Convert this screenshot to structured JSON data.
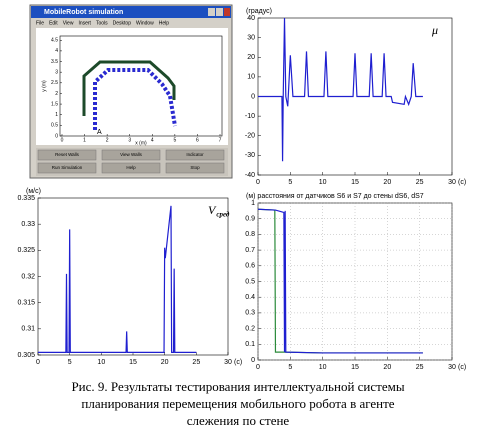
{
  "screenshot": {
    "title": "MobileRobot simulation",
    "menu": [
      "File",
      "Edit",
      "View",
      "Insert",
      "Tools",
      "Desktop",
      "Window",
      "Help"
    ],
    "xlabel": "x (m)",
    "ylabel": "y (m)",
    "xlim": [
      0,
      7
    ],
    "ylim": [
      0,
      4.7
    ],
    "xticks": [
      0,
      1,
      2,
      3,
      4,
      5,
      6,
      7
    ],
    "yticks": [
      0,
      0.5,
      1,
      1.5,
      2,
      2.5,
      3,
      3.5,
      4,
      4.5
    ],
    "marker_label": "A",
    "buttons": [
      "Reset Walls",
      "View Walls",
      "Indicator",
      "Run Simulation",
      "Help",
      "Stop"
    ]
  },
  "chart_data": [
    {
      "type": "line",
      "title": "(градус)",
      "annotation": "μ",
      "x_label": "(c)",
      "x": [
        0,
        3.7,
        3.8,
        3.9,
        4.1,
        4.3,
        4.6,
        5.0,
        5.4,
        7.2,
        7.5,
        7.8,
        10.2,
        10.5,
        10.8,
        14.7,
        15,
        15.3,
        17.2,
        17.5,
        17.8,
        19.2,
        19.5,
        19.8,
        20.6,
        20.8,
        22.6,
        22.8,
        23.3,
        23.7,
        24,
        24.4,
        25.5
      ],
      "series": [
        {
          "color": "#1f1fd0",
          "values": [
            0,
            0,
            -33,
            0,
            40,
            0,
            -5,
            21,
            0,
            0,
            23,
            0,
            0,
            23,
            0,
            0,
            22,
            0,
            0,
            22,
            0,
            0,
            22,
            0,
            0,
            -3,
            -4,
            0,
            -4,
            0,
            17,
            0,
            0
          ]
        }
      ],
      "xlim": [
        0,
        30
      ],
      "xticks": [
        0,
        5,
        10,
        15,
        20,
        25,
        30
      ],
      "ylim": [
        -40,
        40
      ],
      "yticks": [
        -40,
        -30,
        -20,
        -10,
        0,
        10,
        20,
        30,
        40
      ],
      "grid": false
    },
    {
      "type": "line",
      "title": "(м/с)",
      "annotation": "V",
      "annotation_subscript": "сред",
      "x_label": "(c)",
      "x": [
        0,
        4.4,
        4.5,
        4.6,
        4.9,
        5.0,
        5.1,
        13.9,
        14,
        14.1,
        19.9,
        20,
        20.1,
        21,
        21.1,
        21.2,
        21.4,
        21.5,
        21.6,
        25
      ],
      "series": [
        {
          "color": "#1f1fd0",
          "values": [
            0.3055,
            0.3055,
            0.3205,
            0.3055,
            0.3055,
            0.329,
            0.3055,
            0.3055,
            0.3095,
            0.3055,
            0.3055,
            0.3255,
            0.3235,
            0.3335,
            0.3055,
            0.3055,
            0.3055,
            0.3215,
            0.3055,
            0.3055
          ]
        }
      ],
      "xlim": [
        0,
        30
      ],
      "xticks": [
        0,
        5,
        10,
        15,
        20,
        25,
        30
      ],
      "ylim": [
        0.305,
        0.335
      ],
      "yticks": [
        0.305,
        0.31,
        0.315,
        0.32,
        0.325,
        0.33,
        0.335
      ],
      "grid": false
    },
    {
      "type": "line",
      "title": "(м)   расстояния от датчиков S6 и S7 до стены dS6, dS7",
      "x_label": "(c)",
      "x": [
        0,
        2.6,
        2.7,
        4,
        4.1,
        4.2,
        4.3,
        10,
        20,
        25.5
      ],
      "series": [
        {
          "color": "#2a8a3a",
          "values": [
            0.96,
            0.955,
            0.05,
            0.05,
            0.05,
            0.05,
            0.05,
            0.045,
            0.045,
            0.045
          ]
        },
        {
          "color": "#1f1fd0",
          "values": [
            0.96,
            0.955,
            0.955,
            0.94,
            0.05,
            0.95,
            0.05,
            0.045,
            0.045,
            0.045
          ]
        }
      ],
      "xlim": [
        0,
        30
      ],
      "xticks": [
        0,
        5,
        10,
        15,
        20,
        25,
        30
      ],
      "ylim": [
        0,
        1
      ],
      "yticks": [
        0,
        0.1,
        0.2,
        0.3,
        0.4,
        0.5,
        0.6,
        0.7,
        0.8,
        0.9,
        1
      ],
      "grid": true
    }
  ],
  "caption": [
    "Рис. 9. Результаты тестирования интеллектуальной системы",
    "планирования перемещения мобильного робота в агенте",
    "слежения по стене"
  ]
}
